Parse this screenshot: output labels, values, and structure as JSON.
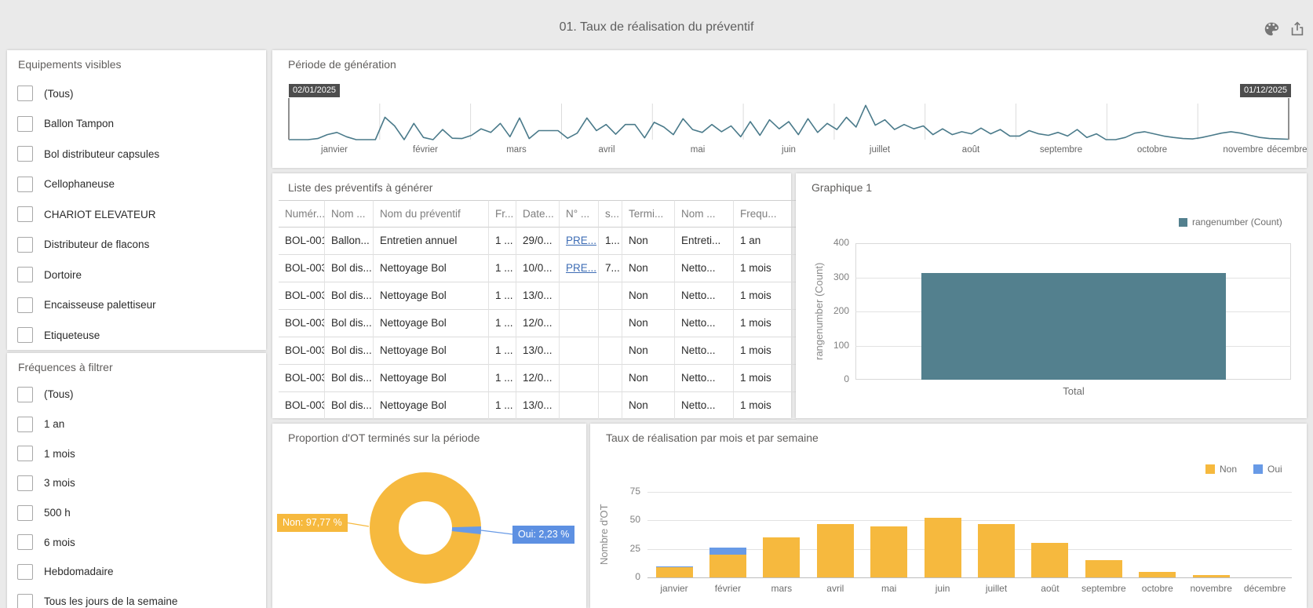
{
  "header": {
    "title": "01. Taux de réalisation du préventif"
  },
  "toolbar": {
    "icons": [
      "palette-icon",
      "export-icon"
    ]
  },
  "equipements": {
    "title": "Equipements visibles",
    "items": [
      "(Tous)",
      "Ballon Tampon",
      "Bol distributeur capsules",
      "Cellophaneuse",
      "CHARIOT ELEVATEUR",
      "Distributeur de flacons",
      "Dortoire",
      "Encaisseuse palettiseur",
      "Etiqueteuse"
    ]
  },
  "frequences": {
    "title": "Fréquences à filtrer",
    "items": [
      "(Tous)",
      "1 an",
      "1 mois",
      "3 mois",
      "500 h",
      "6 mois",
      "Hebdomadaire",
      "Tous les jours de la semaine"
    ]
  },
  "timeline": {
    "title": "Période de génération",
    "start_date": "02/01/2025",
    "end_date": "01/12/2025",
    "months": [
      "janvier",
      "février",
      "mars",
      "avril",
      "mai",
      "juin",
      "juillet",
      "août",
      "septembre",
      "octobre",
      "novembre",
      "décembre"
    ],
    "line_color": "#4a7a8a",
    "values": [
      0,
      0,
      0,
      3,
      14,
      20,
      8,
      0,
      0,
      0,
      62,
      38,
      0,
      45,
      6,
      0,
      28,
      4,
      3,
      12,
      30,
      20,
      45,
      8,
      60,
      3,
      25,
      25,
      25,
      4,
      18,
      60,
      25,
      42,
      15,
      42,
      42,
      5,
      48,
      35,
      14,
      58,
      28,
      20,
      42,
      22,
      38,
      8,
      50,
      12,
      55,
      30,
      50,
      14,
      58,
      20,
      45,
      28,
      62,
      35,
      95,
      40,
      55,
      28,
      42,
      30,
      38,
      14,
      30,
      14,
      22,
      16,
      32,
      16,
      28,
      10,
      10,
      25,
      16,
      12,
      20,
      10,
      28,
      6,
      16,
      0,
      0,
      6,
      18,
      22,
      16,
      10,
      6,
      3,
      2,
      6,
      12,
      18,
      22,
      18,
      12,
      6,
      3,
      2,
      1
    ]
  },
  "prev_table": {
    "title": "Liste des préventifs à générer",
    "columns": [
      "Numér...",
      "Nom ...",
      "Nom du préventif",
      "Fr...",
      "Date...",
      "N° ...",
      "s...",
      "Termi...",
      "Nom ...",
      "Frequ..."
    ],
    "link_column": 5,
    "rows": [
      [
        "BOL-001",
        "Ballon...",
        "Entretien annuel",
        "1 ...",
        "29/0...",
        "PRE...",
        "1...",
        "Non",
        "Entreti...",
        "1 an"
      ],
      [
        "BOL-003",
        "Bol dis...",
        "Nettoyage Bol",
        "1 ...",
        "10/0...",
        "PRE...",
        "7...",
        "Non",
        "Netto...",
        "1 mois"
      ],
      [
        "BOL-003",
        "Bol dis...",
        "Nettoyage Bol",
        "1 ...",
        "13/0...",
        "",
        "",
        "Non",
        "Netto...",
        "1 mois"
      ],
      [
        "BOL-003",
        "Bol dis...",
        "Nettoyage Bol",
        "1 ...",
        "12/0...",
        "",
        "",
        "Non",
        "Netto...",
        "1 mois"
      ],
      [
        "BOL-003",
        "Bol dis...",
        "Nettoyage Bol",
        "1 ...",
        "13/0...",
        "",
        "",
        "Non",
        "Netto...",
        "1 mois"
      ],
      [
        "BOL-003",
        "Bol dis...",
        "Nettoyage Bol",
        "1 ...",
        "12/0...",
        "",
        "",
        "Non",
        "Netto...",
        "1 mois"
      ],
      [
        "BOL-003",
        "Bol dis...",
        "Nettoyage Bol",
        "1 ...",
        "13/0...",
        "",
        "",
        "Non",
        "Netto...",
        "1 mois"
      ]
    ]
  },
  "graphique1": {
    "title": "Graphique 1",
    "legend": "rangenumber (Count)",
    "y_label": "rangenumber (Count)",
    "bar_color": "#53808e",
    "chart_data": {
      "type": "bar",
      "categories": [
        "Total"
      ],
      "values": [
        312
      ],
      "ylabel": "rangenumber (Count)",
      "ylim": [
        0,
        400
      ],
      "yticks": [
        0,
        100,
        200,
        300,
        400
      ],
      "legend_position": "top-right",
      "grid": true
    }
  },
  "donut": {
    "title": "Proportion d'OT terminés sur la période",
    "label_non": "Non: 97,77 %",
    "label_oui": "Oui: 2,23 %",
    "chart_data": {
      "type": "pie",
      "slices": [
        {
          "label": "Non",
          "pct": 97.77,
          "color": "#f6b93e"
        },
        {
          "label": "Oui",
          "pct": 2.23,
          "color": "#689ae6"
        }
      ]
    }
  },
  "monthly": {
    "title": "Taux de réalisation par mois et par semaine",
    "y_label": "Nombre d'OT",
    "legend": [
      {
        "label": "Non",
        "color": "#f6b93e"
      },
      {
        "label": "Oui",
        "color": "#689ae6"
      }
    ],
    "chart_data": {
      "type": "bar",
      "stacked": true,
      "categories": [
        "janvier",
        "février",
        "mars",
        "avril",
        "mai",
        "juin",
        "juillet",
        "août",
        "septembre",
        "octobre",
        "novembre",
        "décembre"
      ],
      "series": [
        {
          "name": "Non",
          "color": "#f6b93e",
          "values": [
            9,
            20,
            35,
            47,
            45,
            52,
            47,
            30,
            15,
            5,
            2,
            0
          ]
        },
        {
          "name": "Oui",
          "color": "#689ae6",
          "values": [
            1,
            6,
            0,
            0,
            0,
            0,
            0,
            0,
            0,
            0,
            0,
            0
          ]
        }
      ],
      "ylabel": "Nombre d'OT",
      "ylim": [
        0,
        75
      ],
      "yticks": [
        0,
        25,
        50,
        75
      ],
      "grid": true
    }
  }
}
